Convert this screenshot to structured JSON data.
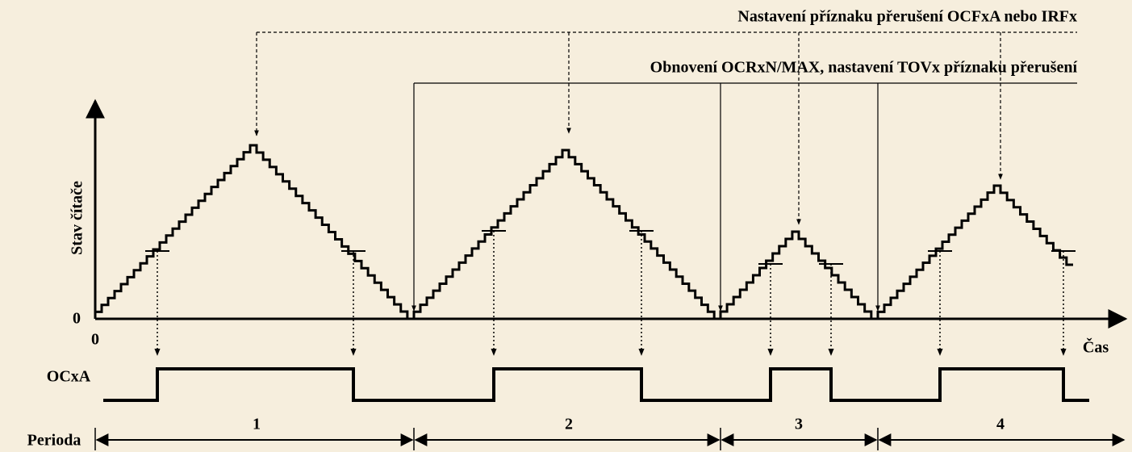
{
  "annotations": {
    "flag_set": "Nastavení příznaku přerušení OCFxA nebo IRFx",
    "update": "Obnovení OCRxN/MAX, nastavení TOVx příznaku přerušení"
  },
  "axes": {
    "y_label": "Stav čítače",
    "y_zero": "0",
    "x_zero": "0",
    "x_label": "Čas"
  },
  "signal": {
    "label": "OCxA"
  },
  "periods": {
    "label": "Perioda",
    "items": [
      "1",
      "2",
      "3",
      "4"
    ]
  }
}
